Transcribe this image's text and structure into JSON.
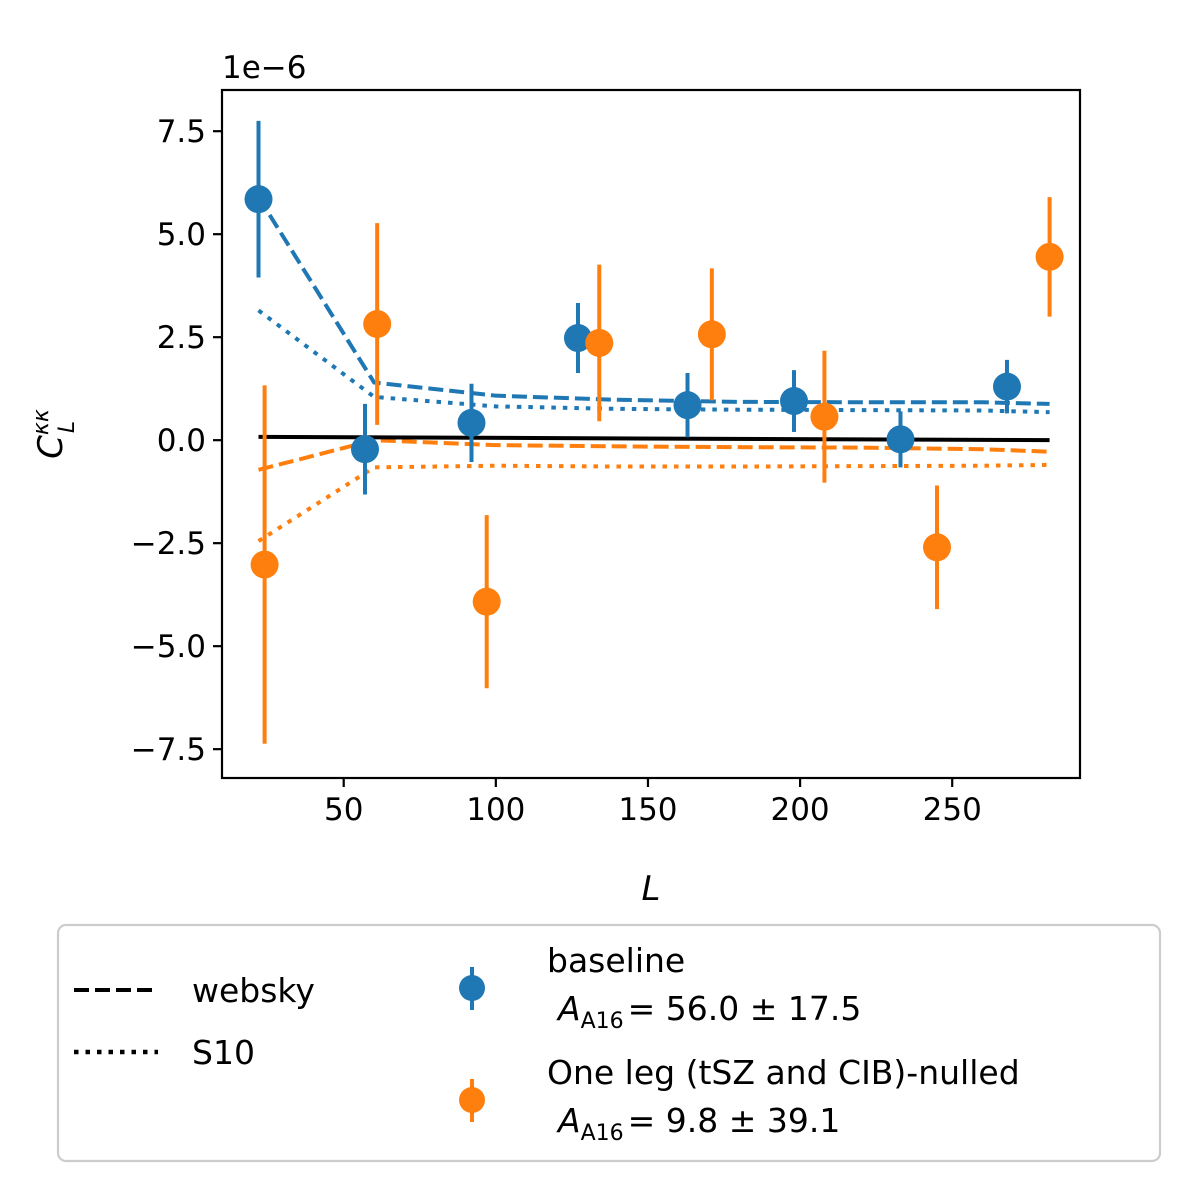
{
  "chart_data": {
    "type": "scatter",
    "xlabel": "L",
    "ylabel_base": "C",
    "ylabel_sup": "κκ",
    "ylabel_sub": "L",
    "offset_text": "1e−6",
    "xlim": [
      10,
      292
    ],
    "ylim": [
      -8.2,
      8.5
    ],
    "xticks": [
      50,
      100,
      150,
      200,
      250
    ],
    "xtick_labels": [
      "50",
      "100",
      "150",
      "200",
      "250"
    ],
    "yticks": [
      -7.5,
      -5.0,
      -2.5,
      0.0,
      2.5,
      5.0,
      7.5
    ],
    "ytick_labels": [
      "−7.5",
      "−5.0",
      "−2.5",
      "0.0",
      "2.5",
      "5.0",
      "7.5"
    ],
    "colors": {
      "blue": "#1f77b4",
      "orange": "#ff7f0e",
      "black": "#000000"
    },
    "reference_line": {
      "x": [
        22,
        282
      ],
      "y": [
        0.08,
        0.0
      ],
      "color": "#000000"
    },
    "model_lines": [
      {
        "legend": "websky",
        "style": "dashed",
        "color": "#1f77b4",
        "x": [
          22,
          60,
          100,
          140,
          180,
          220,
          260,
          282
        ],
        "y": [
          5.9,
          1.4,
          1.08,
          0.98,
          0.93,
          0.92,
          0.92,
          0.88
        ]
      },
      {
        "legend": "S10",
        "style": "dotted",
        "color": "#1f77b4",
        "x": [
          22,
          60,
          100,
          140,
          180,
          220,
          260,
          282
        ],
        "y": [
          3.15,
          1.05,
          0.82,
          0.76,
          0.74,
          0.73,
          0.72,
          0.68
        ]
      },
      {
        "legend": "websky",
        "style": "dashed",
        "color": "#ff7f0e",
        "x": [
          22,
          60,
          100,
          140,
          180,
          220,
          260,
          282
        ],
        "y": [
          -0.72,
          0.0,
          -0.12,
          -0.15,
          -0.17,
          -0.18,
          -0.22,
          -0.28
        ]
      },
      {
        "legend": "S10",
        "style": "dotted",
        "color": "#ff7f0e",
        "x": [
          22,
          60,
          100,
          140,
          180,
          220,
          260,
          282
        ],
        "y": [
          -2.45,
          -0.66,
          -0.62,
          -0.64,
          -0.64,
          -0.63,
          -0.62,
          -0.6
        ]
      }
    ],
    "series": [
      {
        "name": "baseline",
        "amp_symbol": "A",
        "amp_sub": "A16",
        "amp_value": "= 56.0 ± 17.5",
        "color": "#1f77b4",
        "x": [
          22,
          57,
          92,
          127,
          163,
          198,
          233,
          268
        ],
        "y": [
          5.85,
          -0.22,
          0.42,
          2.48,
          0.85,
          0.95,
          0.02,
          1.3
        ],
        "yerr": [
          1.9,
          1.1,
          0.95,
          0.85,
          0.78,
          0.75,
          0.68,
          0.65
        ]
      },
      {
        "name": "One leg (tSZ and CIB)-nulled",
        "amp_symbol": "A",
        "amp_sub": "A16",
        "amp_value": "= 9.8 ± 39.1",
        "color": "#ff7f0e",
        "x": [
          24,
          61,
          97,
          134,
          171,
          208,
          245,
          282
        ],
        "y": [
          -3.02,
          2.82,
          -3.92,
          2.36,
          2.57,
          0.57,
          -2.6,
          4.45
        ],
        "yerr": [
          4.35,
          2.45,
          2.1,
          1.9,
          1.6,
          1.6,
          1.5,
          1.45
        ]
      }
    ],
    "legend_lines": [
      {
        "label": "websky",
        "style": "dashed"
      },
      {
        "label": "S10",
        "style": "dotted"
      }
    ],
    "legend_position": "bottom"
  }
}
